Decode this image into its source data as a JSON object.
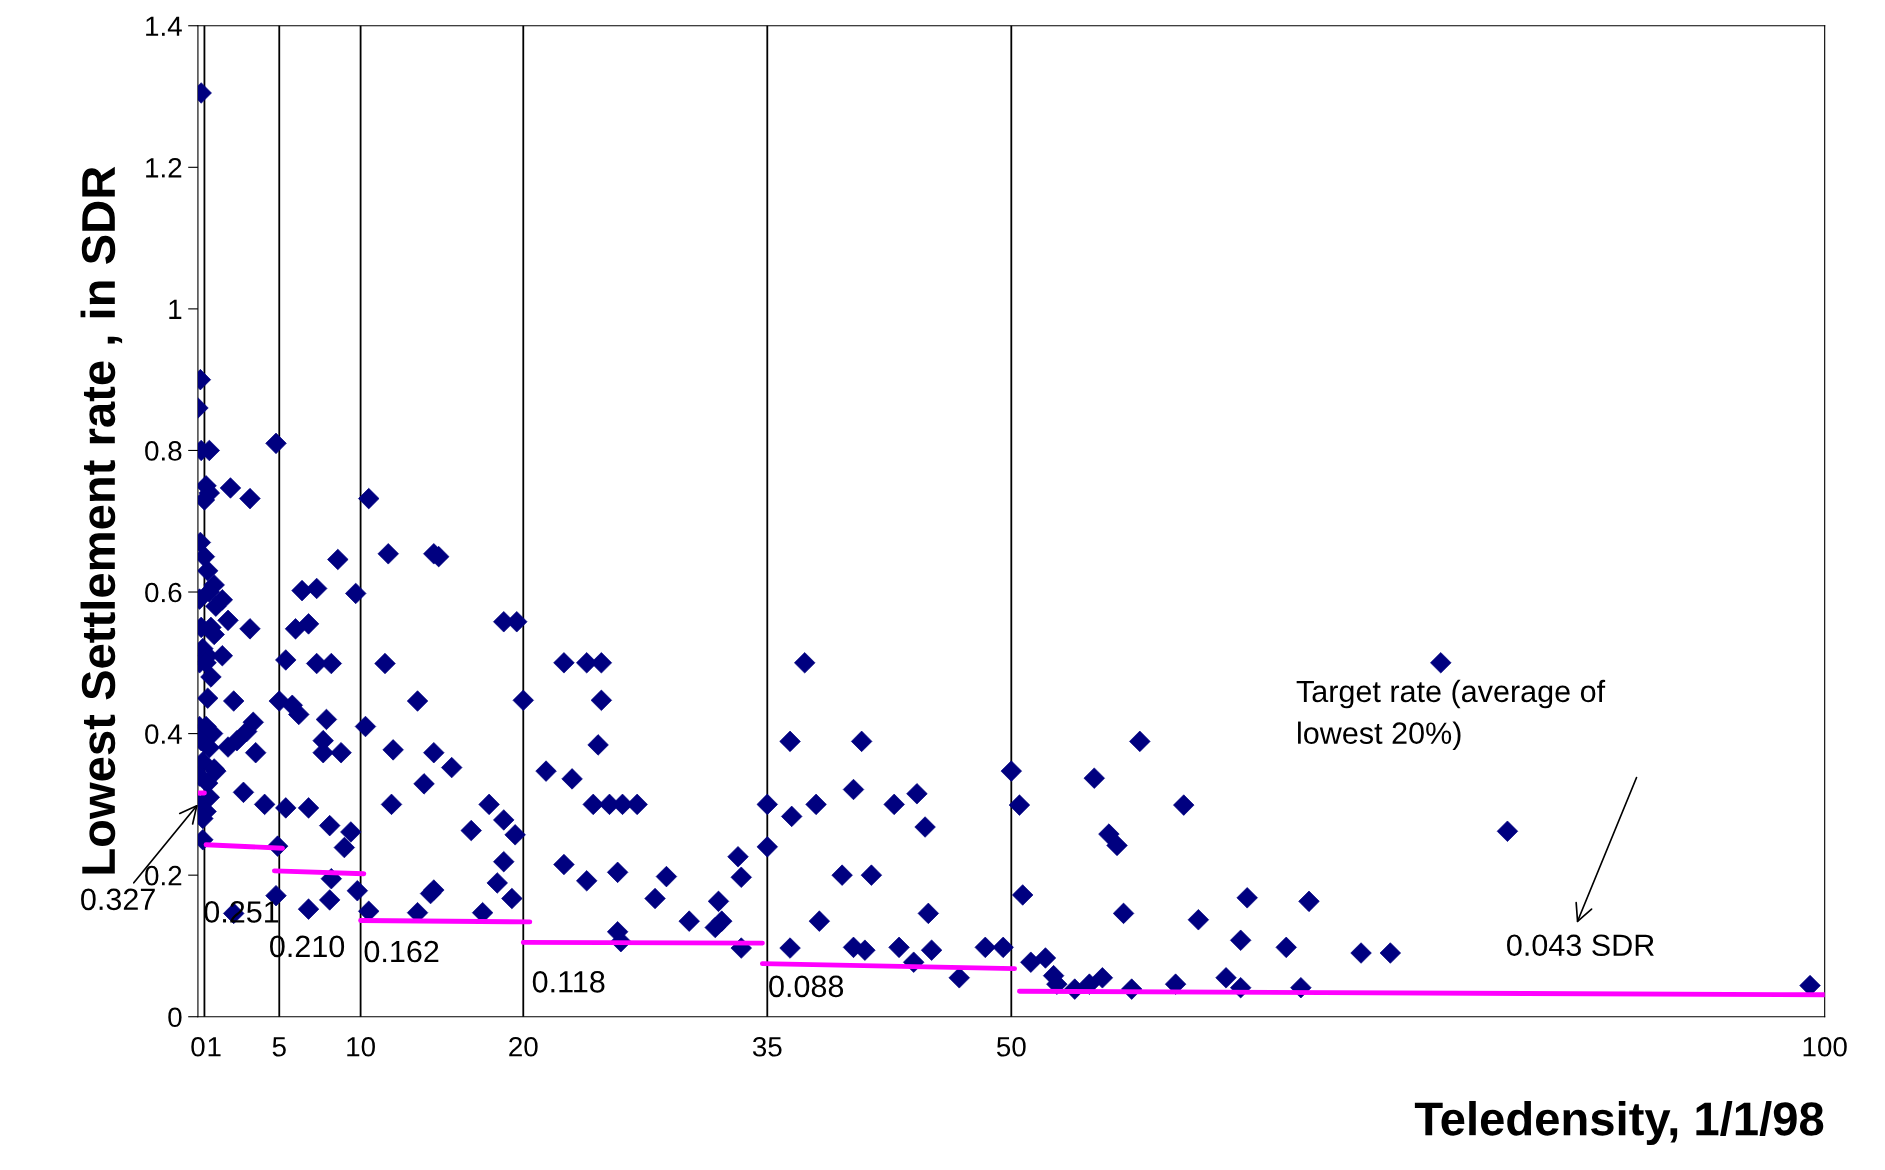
{
  "chart_data": {
    "type": "scatter",
    "xlabel": "Teledensity, 1/1/98",
    "ylabel": "Lowest Settlement rate , in SDR",
    "xlim": [
      0,
      100
    ],
    "xticks": [
      0,
      1,
      5,
      10,
      20,
      35,
      50,
      100
    ],
    "ylim": [
      0,
      1.4
    ],
    "yticks": [
      0,
      0.2,
      0.4,
      0.6,
      0.8,
      1,
      1.2,
      1.4
    ],
    "grid": false,
    "series": [
      {
        "marker": "diamond",
        "color": "#000080",
        "x": [
          0.2,
          0.15,
          0.0,
          0.2,
          0.7,
          0.5,
          0.7,
          0.4,
          0.15,
          0.4,
          0.6,
          1.0,
          0.7,
          0.1,
          1.1,
          0.2,
          0.8,
          1.0,
          0.3,
          0.6,
          0.1,
          1.5,
          0.5,
          0.8,
          0.6,
          0.1,
          0.5,
          0.9,
          0.2,
          0.7,
          0.3,
          1.0,
          0.1,
          0.6,
          0.7,
          0.0,
          0.5,
          0.3,
          0.3,
          2.0,
          3.2,
          4.8,
          10.5,
          8.6,
          11.7,
          14.5,
          6.4,
          7.3,
          9.7,
          1.5,
          1.85,
          3.2,
          6.0,
          6.8,
          5.4,
          7.3,
          8.2,
          11.5,
          2.2,
          5.0,
          5.8,
          6.2,
          7.9,
          3.4,
          3.0,
          3.55,
          2.4,
          1.85,
          7.7,
          7.7,
          8.8,
          10.3,
          12.0,
          13.5,
          13.9,
          14.5,
          11.9,
          1.1,
          4.1,
          2.8,
          5.4,
          6.8,
          8.1,
          9.4,
          9.0,
          4.9,
          8.2,
          9.8,
          4.8,
          6.8,
          8.1,
          2.2,
          10.5,
          13.5,
          14.3,
          14.8,
          18.8,
          19.6,
          20.0,
          22.5,
          23.9,
          24.8,
          24.8,
          24.6,
          15.6,
          21.4,
          23.0,
          24.3,
          25.3,
          26.1,
          27.0,
          35.0,
          36.5,
          38.0,
          37.3,
          36.4,
          17.9,
          18.8,
          16.8,
          19.5,
          35.0,
          18.8,
          18.4,
          19.3,
          14.5,
          17.5,
          22.5,
          23.9,
          25.8,
          28.8,
          28.1,
          33.2,
          33.4,
          30.2,
          32.0,
          32.2,
          31.8,
          25.8,
          26.0,
          33.4,
          36.4,
          38.2,
          40.8,
          40.3,
          42.8,
          44.2,
          44.7,
          39.6,
          41.4,
          44.9,
          40.3,
          41.0,
          43.1,
          44.0,
          45.1,
          46.8,
          48.4,
          49.5,
          50.0,
          50.5,
          50.7,
          51.2,
          52.1,
          52.6,
          52.8,
          53.9,
          54.8,
          55.6,
          57.4,
          55.1,
          57.9,
          56.0,
          56.5,
          56.9,
          60.6,
          61.5,
          64.5,
          64.1,
          60.1,
          63.2,
          64.1,
          66.9,
          68.3,
          67.8,
          76.4,
          80.5,
          71.5,
          73.3,
          99.1
        ],
        "values": [
          1.305,
          0.9,
          0.86,
          0.8,
          0.8,
          0.75,
          0.74,
          0.73,
          0.67,
          0.65,
          0.63,
          0.61,
          0.6,
          0.59,
          0.58,
          0.55,
          0.55,
          0.54,
          0.52,
          0.51,
          0.5,
          0.51,
          0.5,
          0.48,
          0.45,
          0.41,
          0.41,
          0.4,
          0.39,
          0.38,
          0.36,
          0.35,
          0.34,
          0.33,
          0.31,
          0.3,
          0.29,
          0.28,
          0.25,
          0.747,
          0.732,
          0.81,
          0.732,
          0.646,
          0.654,
          0.654,
          0.602,
          0.605,
          0.598,
          0.589,
          0.56,
          0.548,
          0.548,
          0.555,
          0.504,
          0.499,
          0.499,
          0.499,
          0.446,
          0.446,
          0.44,
          0.427,
          0.42,
          0.416,
          0.403,
          0.373,
          0.39,
          0.381,
          0.39,
          0.373,
          0.373,
          0.41,
          0.377,
          0.446,
          0.329,
          0.373,
          0.3,
          0.347,
          0.3,
          0.317,
          0.295,
          0.295,
          0.27,
          0.261,
          0.239,
          0.241,
          0.195,
          0.178,
          0.171,
          0.152,
          0.165,
          0.146,
          0.149,
          0.147,
          0.174,
          0.65,
          0.558,
          0.558,
          0.447,
          0.5,
          0.5,
          0.5,
          0.447,
          0.384,
          0.352,
          0.347,
          0.336,
          0.3,
          0.3,
          0.3,
          0.3,
          0.3,
          0.283,
          0.3,
          0.5,
          0.389,
          0.3,
          0.278,
          0.263,
          0.257,
          0.24,
          0.219,
          0.189,
          0.167,
          0.179,
          0.147,
          0.215,
          0.192,
          0.204,
          0.198,
          0.167,
          0.226,
          0.197,
          0.135,
          0.163,
          0.135,
          0.126,
          0.12,
          0.106,
          0.097,
          0.097,
          0.135,
          0.389,
          0.321,
          0.3,
          0.315,
          0.268,
          0.2,
          0.2,
          0.146,
          0.098,
          0.094,
          0.098,
          0.077,
          0.094,
          0.055,
          0.098,
          0.098,
          0.347,
          0.299,
          0.172,
          0.077,
          0.083,
          0.058,
          0.046,
          0.039,
          0.046,
          0.055,
          0.039,
          0.337,
          0.389,
          0.258,
          0.242,
          0.146,
          0.299,
          0.137,
          0.168,
          0.108,
          0.046,
          0.055,
          0.041,
          0.098,
          0.163,
          0.041,
          0.5,
          0.262,
          0.09,
          0.09,
          0.044
        ]
      },
      {
        "type": "line",
        "color": "#ff00ff",
        "x": [
          0,
          0.4
        ],
        "values": [
          0.316,
          0.316
        ]
      },
      {
        "type": "line",
        "color": "#ff00ff",
        "x": [
          0.5,
          5.2
        ],
        "values": [
          0.243,
          0.238
        ]
      },
      {
        "type": "line",
        "color": "#ff00ff",
        "x": [
          4.7,
          10.2
        ],
        "values": [
          0.206,
          0.202
        ]
      },
      {
        "type": "line",
        "color": "#ff00ff",
        "x": [
          10.0,
          20.4
        ],
        "values": [
          0.136,
          0.134
        ]
      },
      {
        "type": "line",
        "color": "#ff00ff",
        "x": [
          20.0,
          34.7
        ],
        "values": [
          0.105,
          0.104
        ]
      },
      {
        "type": "line",
        "color": "#ff00ff",
        "x": [
          34.7,
          50.2
        ],
        "values": [
          0.075,
          0.068
        ]
      },
      {
        "type": "line",
        "color": "#ff00ff",
        "x": [
          50.5,
          100
        ],
        "values": [
          0.036,
          0.031
        ]
      }
    ],
    "ref_lines": [
      {
        "axis": "x",
        "value": 0.4,
        "color": "#000000"
      },
      {
        "axis": "x",
        "value": 5,
        "color": "#000000"
      },
      {
        "axis": "x",
        "value": 10,
        "color": "#000000"
      },
      {
        "axis": "x",
        "value": 20,
        "color": "#000000"
      },
      {
        "axis": "x",
        "value": 35,
        "color": "#000000"
      },
      {
        "axis": "x",
        "value": 50,
        "color": "#000000"
      }
    ],
    "annotations": [
      {
        "text": "0.327",
        "x": 0,
        "y": 0.3
      },
      {
        "text": "0.251",
        "x": 0.5,
        "y": 0.243
      },
      {
        "text": "0.210",
        "x": 4.7,
        "y": 0.206
      },
      {
        "text": "0.162",
        "x": 10.0,
        "y": 0.136
      },
      {
        "text": "0.118",
        "x": 20.0,
        "y": 0.105
      },
      {
        "text": "0.088",
        "x": 34.7,
        "y": 0.075
      },
      {
        "text": "0.043 SDR",
        "x": 80.4,
        "y": 0.034
      },
      "Target rate (average of\nlowest 20%)"
    ]
  }
}
